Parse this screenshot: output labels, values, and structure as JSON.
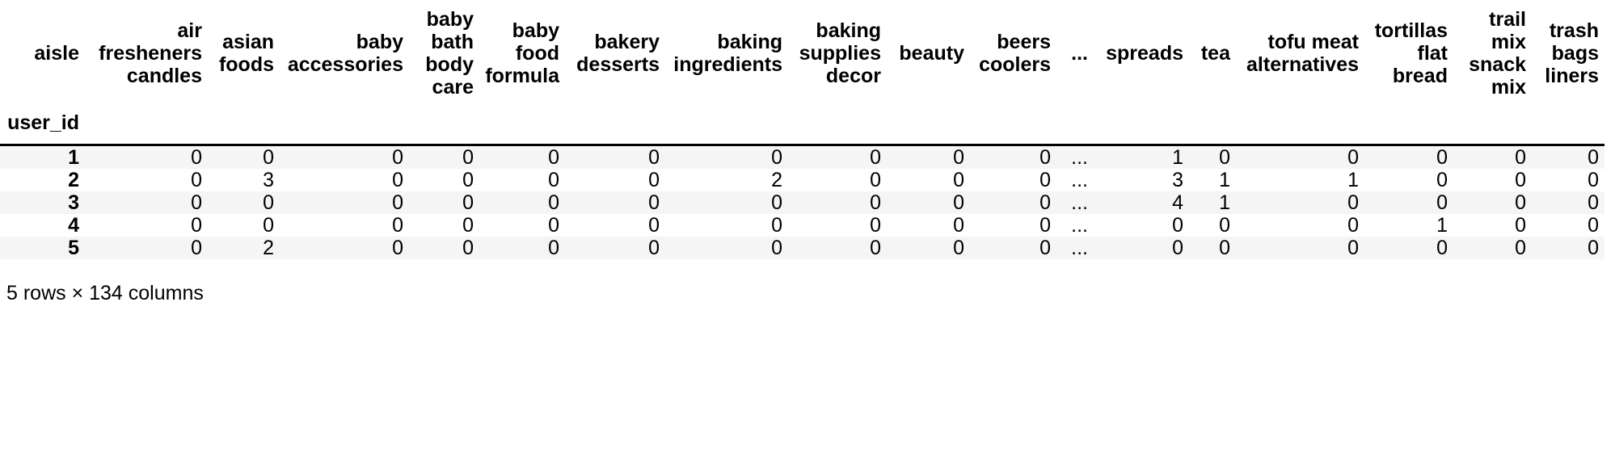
{
  "table": {
    "columns_axis_name": "aisle",
    "index_name": "user_id",
    "columns": [
      "air fresheners candles",
      "asian foods",
      "baby accessories",
      "baby bath body care",
      "baby food formula",
      "bakery desserts",
      "baking ingredients",
      "baking supplies decor",
      "beauty",
      "beers coolers",
      "...",
      "spreads",
      "tea",
      "tofu meat alternatives",
      "tortillas flat bread",
      "trail mix snack mix",
      "trash bags liners"
    ],
    "rows": [
      {
        "index": "1",
        "values": [
          "0",
          "0",
          "0",
          "0",
          "0",
          "0",
          "0",
          "0",
          "0",
          "0",
          "...",
          "1",
          "0",
          "0",
          "0",
          "0",
          "0"
        ]
      },
      {
        "index": "2",
        "values": [
          "0",
          "3",
          "0",
          "0",
          "0",
          "0",
          "2",
          "0",
          "0",
          "0",
          "...",
          "3",
          "1",
          "1",
          "0",
          "0",
          "0"
        ]
      },
      {
        "index": "3",
        "values": [
          "0",
          "0",
          "0",
          "0",
          "0",
          "0",
          "0",
          "0",
          "0",
          "0",
          "...",
          "4",
          "1",
          "0",
          "0",
          "0",
          "0"
        ]
      },
      {
        "index": "4",
        "values": [
          "0",
          "0",
          "0",
          "0",
          "0",
          "0",
          "0",
          "0",
          "0",
          "0",
          "...",
          "0",
          "0",
          "0",
          "1",
          "0",
          "0"
        ]
      },
      {
        "index": "5",
        "values": [
          "0",
          "2",
          "0",
          "0",
          "0",
          "0",
          "0",
          "0",
          "0",
          "0",
          "...",
          "0",
          "0",
          "0",
          "0",
          "0",
          "0"
        ]
      }
    ],
    "footer": "5 rows × 134 columns"
  }
}
